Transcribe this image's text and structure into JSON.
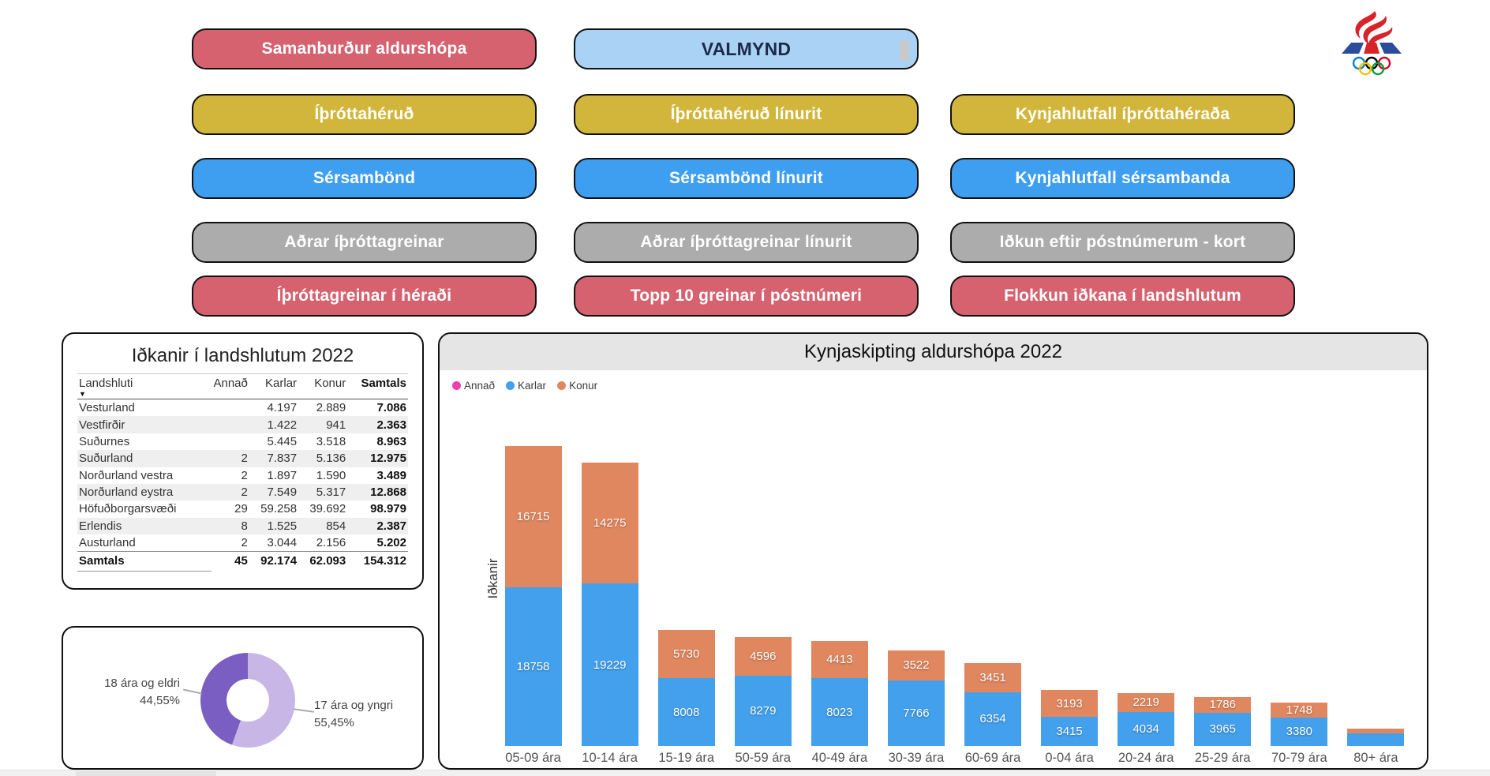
{
  "menu": {
    "buttons": [
      {
        "label": "Samanburður aldurshópa",
        "style": "red",
        "row": 0,
        "col": 0
      },
      {
        "label": "VALMYND",
        "style": "valmynd",
        "row": 0,
        "col": 1
      },
      {
        "label": "Íþróttahéruð",
        "style": "yellow",
        "row": 1,
        "col": 0
      },
      {
        "label": "Íþróttahéruð línurit",
        "style": "yellow",
        "row": 1,
        "col": 1
      },
      {
        "label": "Kynjahlutfall íþróttahéraða",
        "style": "yellow",
        "row": 1,
        "col": 2
      },
      {
        "label": "Sérsambönd",
        "style": "blue",
        "row": 2,
        "col": 0
      },
      {
        "label": "Sérsambönd línurit",
        "style": "blue",
        "row": 2,
        "col": 1
      },
      {
        "label": "Kynjahlutfall sérsambanda",
        "style": "blue",
        "row": 2,
        "col": 2
      },
      {
        "label": "Aðrar íþróttagreinar",
        "style": "gray",
        "row": 3,
        "col": 0
      },
      {
        "label": "Aðrar íþróttagreinar línurit",
        "style": "gray",
        "row": 3,
        "col": 1
      },
      {
        "label": "Iðkun eftir póstnúmerum - kort",
        "style": "gray",
        "row": 3,
        "col": 2
      },
      {
        "label": "Íþróttagreinar í héraði",
        "style": "red",
        "row": 4,
        "col": 0
      },
      {
        "label": "Topp 10 greinar í póstnúmeri",
        "style": "red",
        "row": 4,
        "col": 1
      },
      {
        "label": "Flokkun iðkana í landshlutum",
        "style": "red",
        "row": 4,
        "col": 2
      }
    ],
    "colors": {
      "red": "#D5626E",
      "yellow": "#D2B63C",
      "blue": "#3E9EF0",
      "gray": "#ACACAC",
      "valmynd_bg": "#A9D2F4",
      "valmynd_text": "#1B2A4A"
    }
  },
  "table_panel": {
    "title": "Iðkanir í landshlutum 2022",
    "columns": [
      "Landshluti",
      "Annað",
      "Karlar",
      "Konur",
      "Samtals"
    ],
    "sorted_column": "Landshluti",
    "rows": [
      {
        "name": "Vesturland",
        "annad": "",
        "karlar": "4.197",
        "konur": "2.889",
        "samtals": "7.086"
      },
      {
        "name": "Vestfirðir",
        "annad": "",
        "karlar": "1.422",
        "konur": "941",
        "samtals": "2.363"
      },
      {
        "name": "Suðurnes",
        "annad": "",
        "karlar": "5.445",
        "konur": "3.518",
        "samtals": "8.963"
      },
      {
        "name": "Suðurland",
        "annad": "2",
        "karlar": "7.837",
        "konur": "5.136",
        "samtals": "12.975"
      },
      {
        "name": "Norðurland vestra",
        "annad": "2",
        "karlar": "1.897",
        "konur": "1.590",
        "samtals": "3.489"
      },
      {
        "name": "Norðurland eystra",
        "annad": "2",
        "karlar": "7.549",
        "konur": "5.317",
        "samtals": "12.868"
      },
      {
        "name": "Höfuðborgarsvæði",
        "annad": "29",
        "karlar": "59.258",
        "konur": "39.692",
        "samtals": "98.979"
      },
      {
        "name": "Erlendis",
        "annad": "8",
        "karlar": "1.525",
        "konur": "854",
        "samtals": "2.387"
      },
      {
        "name": "Austurland",
        "annad": "2",
        "karlar": "3.044",
        "konur": "2.156",
        "samtals": "5.202"
      }
    ],
    "total": {
      "name": "Samtals",
      "annad": "45",
      "karlar": "92.174",
      "konur": "62.093",
      "samtals": "154.312"
    }
  },
  "donut_panel": {
    "slices": [
      {
        "label": "17 ára og yngri",
        "pct": "55,45%",
        "value": 55.45,
        "color": "#C7B6E6"
      },
      {
        "label": "18 ára og eldri",
        "pct": "44,55%",
        "value": 44.55,
        "color": "#7A5EC2"
      }
    ]
  },
  "bar_panel": {
    "title": "Kynjaskipting aldurshópa 2022",
    "ylabel": "Iðkanir",
    "legend": [
      {
        "label": "Annað",
        "color": "#EE3EB0"
      },
      {
        "label": "Karlar",
        "color": "#42A0EC"
      },
      {
        "label": "Konur",
        "color": "#E0875F"
      }
    ],
    "karlar_color": "#42A0EC",
    "konur_color": "#E0875F",
    "categories": [
      {
        "label": "05-09 ára",
        "karlar": 18758,
        "konur": 16715,
        "karlar_label": "18758",
        "konur_label": "16715"
      },
      {
        "label": "10-14 ára",
        "karlar": 19229,
        "konur": 14275,
        "karlar_label": "19229",
        "konur_label": "14275"
      },
      {
        "label": "15-19 ára",
        "karlar": 8008,
        "konur": 5730,
        "karlar_label": "8008",
        "konur_label": "5730"
      },
      {
        "label": "50-59 ára",
        "karlar": 8279,
        "konur": 4596,
        "karlar_label": "8279",
        "konur_label": "4596"
      },
      {
        "label": "40-49 ára",
        "karlar": 8023,
        "konur": 4413,
        "karlar_label": "8023",
        "konur_label": "4413"
      },
      {
        "label": "30-39 ára",
        "karlar": 7766,
        "konur": 3522,
        "karlar_label": "7766",
        "konur_label": "3522"
      },
      {
        "label": "60-69 ára",
        "karlar": 6354,
        "konur": 3451,
        "karlar_label": "6354",
        "konur_label": "3451"
      },
      {
        "label": "0-04 ára",
        "karlar": 3415,
        "konur": 3193,
        "karlar_label": "3415",
        "konur_label": "3193"
      },
      {
        "label": "20-24 ára",
        "karlar": 4034,
        "konur": 2219,
        "karlar_label": "4034",
        "konur_label": "2219"
      },
      {
        "label": "25-29 ára",
        "karlar": 3965,
        "konur": 1786,
        "karlar_label": "3965",
        "konur_label": "1786"
      },
      {
        "label": "70-79 ára",
        "karlar": 3380,
        "konur": 1748,
        "karlar_label": "3380",
        "konur_label": "1748"
      },
      {
        "label": "80+ ára",
        "karlar": 1500,
        "konur": 550,
        "karlar_label": "",
        "konur_label": ""
      }
    ]
  },
  "chart_data": [
    {
      "type": "bar",
      "subtype": "stacked-column",
      "title": "Kynjaskipting aldurshópa 2022",
      "xlabel": "",
      "ylabel": "Iðkanir",
      "legend_position": "top-left",
      "grid": false,
      "categories": [
        "05-09 ára",
        "10-14 ára",
        "15-19 ára",
        "50-59 ára",
        "40-49 ára",
        "30-39 ára",
        "60-69 ára",
        "0-04 ára",
        "20-24 ára",
        "25-29 ára",
        "70-79 ára",
        "80+ ára"
      ],
      "series": [
        {
          "name": "Karlar",
          "color": "#42A0EC",
          "values": [
            18758,
            19229,
            8008,
            8279,
            8023,
            7766,
            6354,
            3415,
            4034,
            3965,
            3380,
            1500
          ]
        },
        {
          "name": "Konur",
          "color": "#E0875F",
          "values": [
            16715,
            14275,
            5730,
            4596,
            4413,
            3522,
            3451,
            3193,
            2219,
            1786,
            1748,
            550
          ]
        }
      ],
      "note": "Annað series shown in legend (magenta) but segments are not visible; 80+ ára values estimated from bar height, labels hidden"
    },
    {
      "type": "pie",
      "subtype": "donut",
      "labels": [
        "17 ára og yngri",
        "18 ára og eldri"
      ],
      "values": [
        55.45,
        44.55
      ],
      "display_values": [
        "55,45%",
        "44,55%"
      ],
      "colors": [
        "#C7B6E6",
        "#7A5EC2"
      ]
    },
    {
      "type": "table",
      "title": "Iðkanir í landshlutum 2022",
      "columns": [
        "Landshluti",
        "Annað",
        "Karlar",
        "Konur",
        "Samtals"
      ],
      "rows": [
        [
          "Vesturland",
          null,
          4197,
          2889,
          7086
        ],
        [
          "Vestfirðir",
          null,
          1422,
          941,
          2363
        ],
        [
          "Suðurnes",
          null,
          5445,
          3518,
          8963
        ],
        [
          "Suðurland",
          2,
          7837,
          5136,
          12975
        ],
        [
          "Norðurland vestra",
          2,
          1897,
          1590,
          3489
        ],
        [
          "Norðurland eystra",
          2,
          7549,
          5317,
          12868
        ],
        [
          "Höfuðborgarsvæði",
          29,
          59258,
          39692,
          98979
        ],
        [
          "Erlendis",
          8,
          1525,
          854,
          2387
        ],
        [
          "Austurland",
          2,
          3044,
          2156,
          5202
        ],
        [
          "Samtals",
          45,
          92174,
          62093,
          154312
        ]
      ]
    }
  ]
}
